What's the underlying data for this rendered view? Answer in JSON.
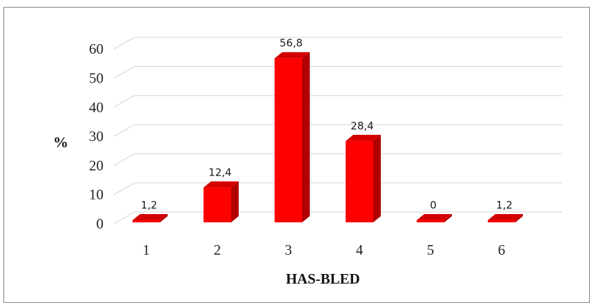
{
  "chart_data": {
    "type": "bar",
    "variant": "3d-column",
    "categories": [
      "1",
      "2",
      "3",
      "4",
      "5",
      "6"
    ],
    "values": [
      1.2,
      12.4,
      56.8,
      28.4,
      0,
      1.2
    ],
    "data_labels": [
      "1,2",
      "12,4",
      "56,8",
      "28,4",
      "0",
      "1,2"
    ],
    "xlabel": "HAS-BLED",
    "ylabel": "%",
    "ylim": [
      0,
      60
    ],
    "yticks": [
      "0",
      "10",
      "20",
      "30",
      "40",
      "50",
      "60"
    ],
    "grid": true,
    "legend": "none",
    "bar_color": "#ff0000",
    "bar_side_color": "#b00000",
    "bar_top_color": "#d40000"
  }
}
